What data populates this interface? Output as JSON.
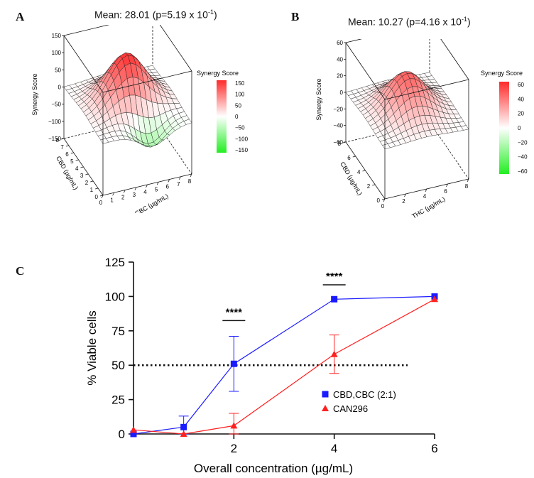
{
  "panels": {
    "a": {
      "letter": "A",
      "title_text": "Mean: 28.01 (p=5.19 x 10",
      "title_exp": "-1",
      "title_close": ")",
      "zlabel": "Synergy Score",
      "xlabel": "CBC (µg/mL)",
      "ylabel": "CBD (µg/mL)",
      "z_ticks": [
        "150",
        "100",
        "50",
        "0",
        "−50",
        "−100",
        "−150"
      ],
      "x_ticks": [
        "0",
        "1",
        "2",
        "3",
        "4",
        "5",
        "6",
        "7",
        "8"
      ],
      "y_ticks": [
        "0",
        "1",
        "2",
        "3",
        "4",
        "5",
        "6",
        "7",
        "8"
      ],
      "legend_title": "Synergy Score",
      "legend_ticks": [
        "150",
        "100",
        "50",
        "0",
        "−50",
        "−100",
        "−150"
      ],
      "colors": {
        "high": "#ff2a2a",
        "mid": "#ffffff",
        "low": "#22ee22"
      }
    },
    "b": {
      "letter": "B",
      "title_text": "Mean: 10.27 (p=4.16 x 10",
      "title_exp": "-1",
      "title_close": ")",
      "zlabel": "Synergy Score",
      "xlabel": "THC (µg/mL)",
      "ylabel": "CBD (µg/mL)",
      "z_ticks": [
        "60",
        "40",
        "20",
        "0",
        "−20",
        "−40",
        "−60"
      ],
      "x_ticks": [
        "0",
        "2",
        "4",
        "6",
        "8"
      ],
      "y_ticks": [
        "0",
        "2",
        "4",
        "6",
        "8"
      ],
      "legend_title": "Synergy Score",
      "legend_ticks": [
        "60",
        "40",
        "20",
        "0",
        "−20",
        "−40",
        "−60"
      ],
      "colors": {
        "high": "#ff2a2a",
        "mid": "#ffffff",
        "low": "#22ee22"
      }
    },
    "c": {
      "letter": "C"
    }
  },
  "chart_data": [
    {
      "type": "surface",
      "panel": "A",
      "title": "Mean: 28.01 (p=5.19 x 10^-1)",
      "xlabel": "CBC (µg/mL)",
      "ylabel": "CBD (µg/mL)",
      "zlabel": "Synergy Score",
      "xlim": [
        0,
        8
      ],
      "ylim": [
        0,
        8
      ],
      "zlim": [
        -150,
        150
      ],
      "peak": 150,
      "trough": -105,
      "color_range": [
        -150,
        150
      ]
    },
    {
      "type": "surface",
      "panel": "B",
      "title": "Mean: 10.27 (p=4.16 x 10^-1)",
      "xlabel": "THC (µg/mL)",
      "ylabel": "CBD (µg/mL)",
      "zlabel": "Synergy Score",
      "xlim": [
        0,
        8
      ],
      "ylim": [
        0,
        8
      ],
      "zlim": [
        -60,
        60
      ],
      "peak": 45,
      "trough": 0,
      "color_range": [
        -60,
        60
      ]
    },
    {
      "type": "line",
      "panel": "C",
      "title": "",
      "xlabel": "Overall concentration (µg/mL)",
      "ylabel": "% Viable cells",
      "xlim": [
        0,
        6
      ],
      "ylim": [
        0,
        125
      ],
      "x_ticks": [
        "2",
        "4",
        "6"
      ],
      "y_ticks": [
        "0",
        "25",
        "50",
        "75",
        "100",
        "125"
      ],
      "reference_line": 50,
      "annotations": [
        {
          "text": "****",
          "x": 2
        },
        {
          "text": "****",
          "x": 4
        }
      ],
      "series": [
        {
          "name": "CBD,CBC (2:1)",
          "color": "#1a1aff",
          "marker": "square",
          "x": [
            0,
            1,
            2,
            4,
            6
          ],
          "y": [
            0,
            5,
            51,
            98,
            100
          ],
          "err": [
            0,
            8,
            20,
            0,
            0
          ]
        },
        {
          "name": "CAN296",
          "color": "#ff2020",
          "marker": "triangle",
          "x": [
            0,
            1,
            2,
            4,
            6
          ],
          "y": [
            3,
            0,
            6,
            58,
            98
          ],
          "err": [
            0,
            0,
            9,
            14,
            0
          ]
        }
      ]
    }
  ]
}
